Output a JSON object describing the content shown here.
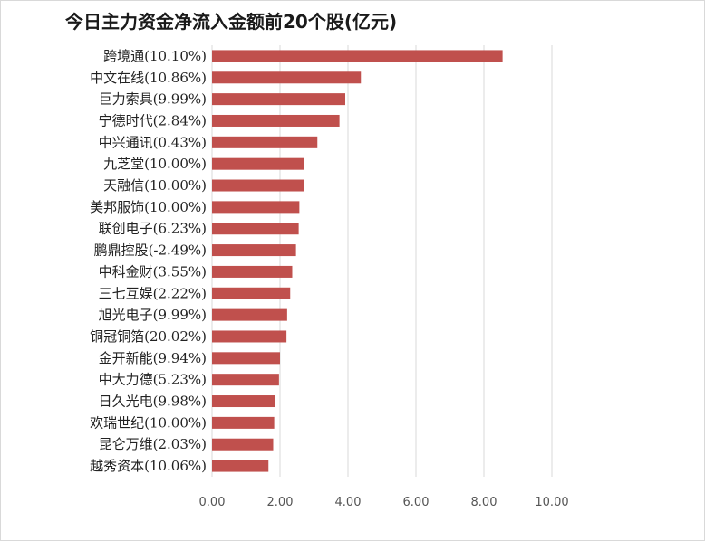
{
  "chart_data": {
    "type": "bar",
    "orientation": "horizontal",
    "title": "今日主力资金净流入金额前20个股(亿元)",
    "categories": [
      "跨境通(10.10%)",
      "中文在线(10.86%)",
      "巨力索具(9.99%)",
      "宁德时代(2.84%)",
      "中兴通讯(0.43%)",
      "九芝堂(10.00%)",
      "天融信(10.00%)",
      "美邦服饰(10.00%)",
      "联创电子(6.23%)",
      "鹏鼎控股(-2.49%)",
      "中科金财(3.55%)",
      "三七互娱(2.22%)",
      "旭光电子(9.99%)",
      "铜冠铜箔(20.02%)",
      "金开新能(9.94%)",
      "中大力德(5.23%)",
      "日久光电(9.98%)",
      "欢瑞世纪(10.00%)",
      "昆仑万维(2.03%)",
      "越秀资本(10.06%)"
    ],
    "values": [
      8.55,
      4.38,
      3.92,
      3.75,
      3.1,
      2.72,
      2.72,
      2.57,
      2.55,
      2.47,
      2.36,
      2.3,
      2.21,
      2.19,
      2.0,
      1.97,
      1.85,
      1.83,
      1.8,
      1.66
    ],
    "xlim": [
      0,
      10
    ],
    "xticks": [
      "0.00",
      "2.00",
      "4.00",
      "6.00",
      "8.00",
      "10.00"
    ],
    "grid": true,
    "bar_color": "#c0504d",
    "grid_color": "#d9d9d9"
  }
}
